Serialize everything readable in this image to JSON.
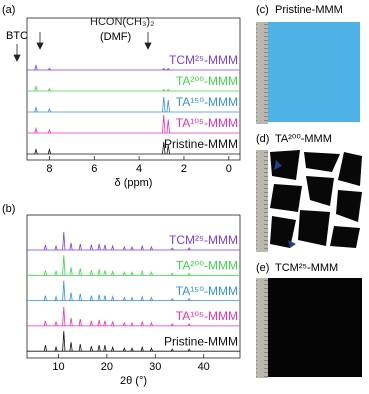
{
  "chart_data": [
    {
      "type": "spectrum",
      "panel": "(a)",
      "xlabel": "δ (ppm)",
      "xlim": [
        9,
        -0.5
      ],
      "xticks": [
        8,
        6,
        4,
        2,
        0
      ],
      "annotations": [
        "BTC",
        "HCON(CH₃)₂",
        "(DMF)"
      ],
      "x": [
        8.6,
        8.0,
        2.9,
        2.7
      ],
      "series": [
        {
          "name": "TCM²⁵-MMM",
          "color": "#7b3fe4",
          "values": [
            0.3,
            0.1,
            0.1,
            0.1
          ]
        },
        {
          "name": "TA²⁰⁰-MMM",
          "color": "#3fd84a",
          "values": [
            0.3,
            0.15,
            0.1,
            0.1
          ]
        },
        {
          "name": "TA¹⁵⁰-MMM",
          "color": "#3a8fe0",
          "values": [
            0.3,
            0.2,
            1.0,
            0.8
          ]
        },
        {
          "name": "TA¹⁰⁵-MMM",
          "color": "#f030b0",
          "values": [
            0.3,
            0.2,
            1.2,
            0.9
          ]
        },
        {
          "name": "Pristine-MMM",
          "color": "#111111",
          "values": [
            0.3,
            0.3,
            0.8,
            0.6
          ]
        }
      ]
    },
    {
      "type": "spectrum",
      "panel": "(b)",
      "xlabel": "2θ (°)",
      "xlim": [
        3.5,
        47.5
      ],
      "xticks": [
        10,
        20,
        30,
        40
      ],
      "x": [
        7.3,
        9.5,
        11.1,
        12.6,
        14.5,
        16.8,
        18.4,
        19.6,
        21.2,
        23.6,
        25.2,
        27.3,
        29.2,
        33.5,
        37
      ],
      "series": [
        {
          "name": "TCM²⁵-MMM",
          "color": "#7b3fe4",
          "values": [
            0.25,
            0.2,
            0.9,
            0.35,
            0.3,
            0.25,
            0.3,
            0.25,
            0.2,
            0.15,
            0.15,
            0.2,
            0.15,
            0.1,
            0.1
          ]
        },
        {
          "name": "TA²⁰⁰-MMM",
          "color": "#3fd84a",
          "values": [
            0.25,
            0.2,
            1.0,
            0.4,
            0.35,
            0.25,
            0.3,
            0.25,
            0.2,
            0.15,
            0.15,
            0.2,
            0.15,
            0.1,
            0.1
          ]
        },
        {
          "name": "TA¹⁵⁰-MMM",
          "color": "#3a8fe0",
          "values": [
            0.25,
            0.2,
            1.0,
            0.4,
            0.35,
            0.25,
            0.3,
            0.25,
            0.2,
            0.15,
            0.15,
            0.2,
            0.15,
            0.1,
            0.1
          ]
        },
        {
          "name": "TA¹⁰⁵-MMM",
          "color": "#f030b0",
          "values": [
            0.25,
            0.2,
            0.95,
            0.4,
            0.35,
            0.25,
            0.3,
            0.25,
            0.2,
            0.15,
            0.15,
            0.2,
            0.15,
            0.1,
            0.1
          ]
        },
        {
          "name": "Pristine-MMM",
          "color": "#111111",
          "values": [
            0.3,
            0.2,
            1.0,
            0.45,
            0.35,
            0.25,
            0.3,
            0.3,
            0.2,
            0.15,
            0.15,
            0.2,
            0.15,
            0.1,
            0.1
          ]
        }
      ]
    }
  ],
  "photos": [
    {
      "label": "(c)",
      "title": "Pristine-MMM"
    },
    {
      "label": "(d)",
      "title": "TA²⁰⁰-MMM"
    },
    {
      "label": "(e)",
      "title": "TCM²⁵-MMM"
    }
  ]
}
